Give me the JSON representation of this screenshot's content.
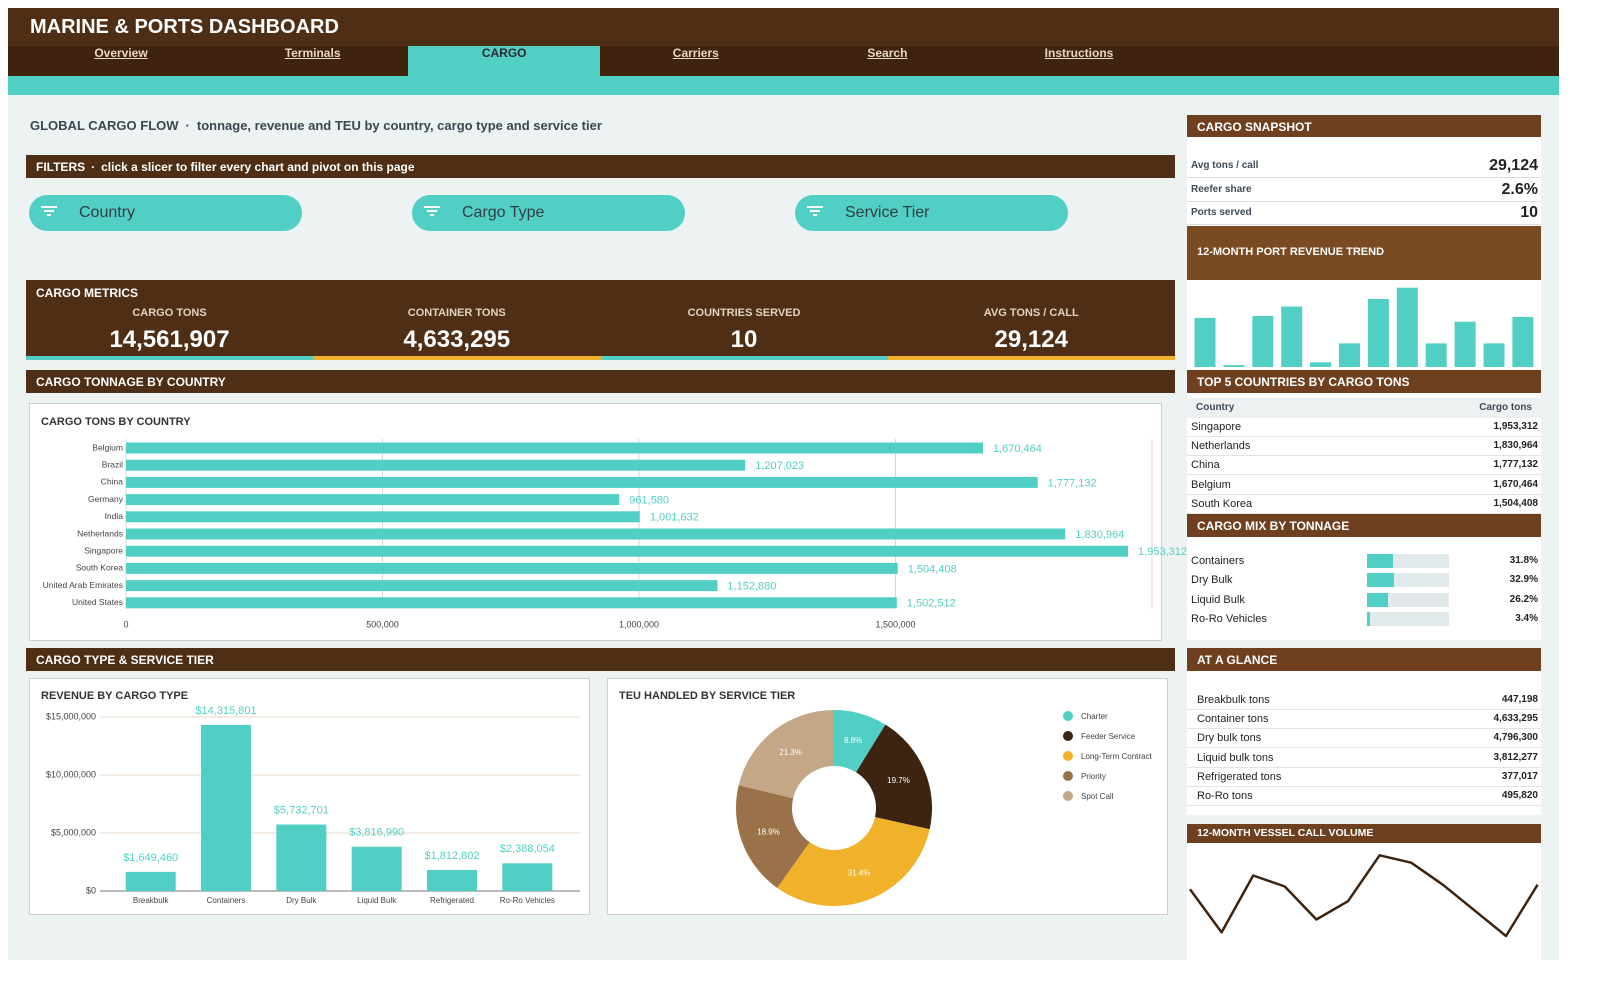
{
  "header": {
    "title": "MARINE & PORTS DASHBOARD"
  },
  "tabs": [
    {
      "label": "Overview"
    },
    {
      "label": "Terminals"
    },
    {
      "label": "CARGO",
      "active": true
    },
    {
      "label": "Carriers"
    },
    {
      "label": "Search"
    },
    {
      "label": "Instructions"
    }
  ],
  "intro": {
    "title": "GLOBAL CARGO FLOW",
    "separator": "·",
    "subtitle": "tonnage, revenue and TEU by country, cargo type and service tier"
  },
  "filters": {
    "title": "FILTERS",
    "separator": "·",
    "note": "click a slicer to filter every chart and pivot on this page",
    "slicers": [
      "Country",
      "Cargo Type",
      "Service Tier"
    ]
  },
  "metrics": {
    "title": "CARGO METRICS",
    "items": [
      {
        "label": "CARGO TONS",
        "value": "14,561,907"
      },
      {
        "label": "CONTAINER TONS",
        "value": "4,633,295"
      },
      {
        "label": "COUNTRIES SERVED",
        "value": "10"
      },
      {
        "label": "AVG TONS / CALL",
        "value": "29,124"
      }
    ]
  },
  "country_section": {
    "title": "CARGO TONNAGE BY COUNTRY",
    "chart": {
      "type": "hbar",
      "title": "CARGO TONS BY COUNTRY",
      "categories": [
        "Belgium",
        "Brazil",
        "China",
        "Germany",
        "India",
        "Netherlands",
        "Singapore",
        "South Korea",
        "United Arab Emirates",
        "United States"
      ],
      "values": [
        1670464,
        1207023,
        1777132,
        961580,
        1001632,
        1830964,
        1953312,
        1504408,
        1152880,
        1502512
      ],
      "value_labels": [
        "1,670,464",
        "1,207,023",
        "1,777,132",
        "961,580",
        "1,001,632",
        "1,830,964",
        "1,953,312",
        "1,504,408",
        "1,152,880",
        "1,502,512"
      ],
      "color": "#52cfc4",
      "xlim": [
        0,
        2000000
      ],
      "xticks": [
        0,
        {
          "value": 500000,
          "label": "500,000"
        },
        {
          "value": 1000000,
          "label": "1,000,000"
        },
        {
          "value": 1500000,
          "label": "1,500,000"
        }
      ],
      "grid": true
    }
  },
  "type_section": {
    "title": "CARGO TYPE & SERVICE TIER",
    "revenue": {
      "type": "bar",
      "title": "REVENUE BY CARGO TYPE",
      "categories": [
        "Breakbulk",
        "Containers",
        "Dry Bulk",
        "Liquid Bulk",
        "Refrigerated",
        "Ro-Ro Vehicles"
      ],
      "values": [
        1649460,
        14315801,
        5732701,
        3816990,
        1812802,
        2388054
      ],
      "value_labels": [
        "$1,649,460",
        "$14,315,801",
        "$5,732,701",
        "$3,816,990",
        "$1,812,802",
        "$2,388,054"
      ],
      "color": "#52cfc4",
      "ylim": [
        0,
        15000000
      ],
      "yticks": [
        {
          "value": 0,
          "label": "$0"
        },
        {
          "value": 5000000,
          "label": "$5,000,000"
        },
        {
          "value": 10000000,
          "label": "$10,000,000"
        },
        {
          "value": 15000000,
          "label": "$15,000,000"
        }
      ],
      "grid": true
    },
    "teu": {
      "type": "donut",
      "title": "TEU HANDLED BY SERVICE TIER",
      "categories": [
        "Charter",
        "Feeder Service",
        "Long-Term Contract",
        "Priority",
        "Spot Call"
      ],
      "values": [
        8.8,
        19.7,
        31.4,
        18.9,
        21.3
      ],
      "value_labels": [
        "8.8%",
        "19.7%",
        "31.4%",
        "18.9%",
        "21.3%"
      ],
      "colors": [
        "#52cfc4",
        "#3d2410",
        "#efb22a",
        "#9a7148",
        "#c4a786"
      ]
    }
  },
  "snapshot": {
    "title": "CARGO SNAPSHOT",
    "rows": [
      [
        "Avg tons / call",
        "29,124"
      ],
      [
        "Reefer share",
        "2.6%"
      ],
      [
        "Ports served",
        "10"
      ]
    ]
  },
  "revenue_trend": {
    "type": "bar",
    "title": "12-MONTH PORT REVENUE TREND",
    "values": [
      52,
      2,
      54,
      64,
      5,
      25,
      72,
      84,
      25,
      48,
      25,
      53
    ],
    "ylim": [
      0,
      90
    ],
    "color": "#52cfc4"
  },
  "top5": {
    "title": "TOP 5 COUNTRIES BY CARGO TONS",
    "columns": [
      "Country",
      "Cargo tons"
    ],
    "rows": [
      [
        "Singapore",
        "1,953,312"
      ],
      [
        "Netherlands",
        "1,830,964"
      ],
      [
        "China",
        "1,777,132"
      ],
      [
        "Belgium",
        "1,670,464"
      ],
      [
        "South Korea",
        "1,504,408"
      ]
    ]
  },
  "cargo_mix": {
    "title": "CARGO MIX BY TONNAGE",
    "categories": [
      "Containers",
      "Dry Bulk",
      "Liquid Bulk",
      "Ro-Ro Vehicles"
    ],
    "values": [
      31.8,
      32.9,
      26.2,
      3.4
    ],
    "value_labels": [
      "31.8%",
      "32.9%",
      "26.2%",
      "3.4%"
    ],
    "xlim": [
      0,
      100
    ],
    "color": "#52cfc4"
  },
  "glance": {
    "title": "AT A GLANCE",
    "rows": [
      [
        "Breakbulk tons",
        "447,198"
      ],
      [
        "Container tons",
        "4,633,295"
      ],
      [
        "Dry bulk tons",
        "4,796,300"
      ],
      [
        "Liquid bulk tons",
        "3,812,277"
      ],
      [
        "Refrigerated tons",
        "377,017"
      ],
      [
        "Ro-Ro tons",
        "495,820"
      ]
    ]
  },
  "vessel_calls": {
    "type": "line",
    "title": "12-MONTH VESSEL CALL VOLUME",
    "values": [
      75,
      28,
      90,
      78,
      42,
      62,
      112,
      104,
      80,
      52,
      24,
      80
    ],
    "ylim": [
      0,
      120
    ],
    "color": "#3d2410"
  }
}
